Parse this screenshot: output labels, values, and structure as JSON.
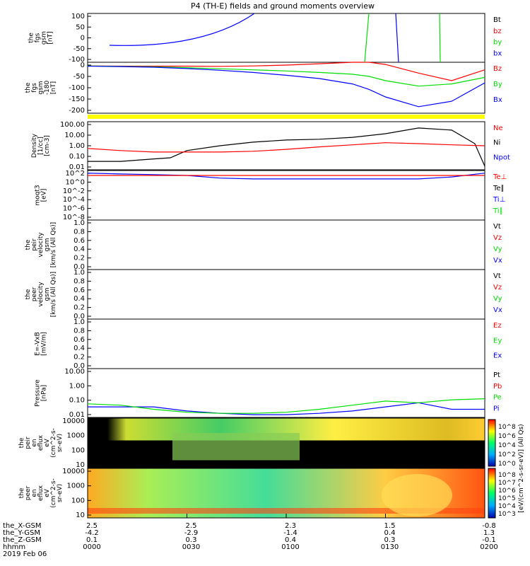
{
  "title": "P4 (TH-E) fields and ground moments overview",
  "colors": {
    "black": "#000000",
    "red": "#ff0000",
    "green": "#00dd00",
    "blue": "#0000ff",
    "yellow": "#ffff00"
  },
  "chart_data": {
    "type": "line",
    "panels": [
      {
        "key": "fgs_gsm",
        "ylabel_lines": [
          "the",
          "fgs",
          "gsm",
          "[nT]"
        ],
        "yticks": [
          "100",
          "50",
          "0",
          "-50",
          "-100"
        ],
        "ylim": [
          -100,
          100
        ],
        "legend": [
          {
            "text": "Bt",
            "color": "black"
          },
          {
            "text": "bz",
            "color": "red"
          },
          {
            "text": "by",
            "color": "green"
          },
          {
            "text": "bx",
            "color": "blue"
          }
        ]
      },
      {
        "key": "fgs_gsm_2",
        "ylabel_lines": [
          "the",
          "fgs",
          "gsm",
          "-180",
          "[nT]"
        ],
        "yticks": [
          "0",
          "-50",
          "-100",
          "-150",
          "-200"
        ],
        "ylim": [
          -220,
          15
        ],
        "legend": [
          {
            "text": "Bz",
            "color": "red"
          },
          {
            "text": "By",
            "color": "green"
          },
          {
            "text": "Bx",
            "color": "blue"
          }
        ],
        "series": [
          {
            "name": "Bz",
            "color": "red",
            "x": [
              0,
              10,
              20,
              30,
              40,
              50,
              60,
              70,
              80,
              85,
              90,
              100,
              110,
              120
            ],
            "values": [
              -2,
              -3,
              -3,
              -3,
              -4,
              -2,
              2,
              8,
              18,
              15,
              5,
              -35,
              -70,
              -20
            ]
          },
          {
            "name": "By",
            "color": "green",
            "x": [
              0,
              10,
              20,
              30,
              40,
              50,
              60,
              70,
              80,
              85,
              90,
              100,
              110,
              120
            ],
            "values": [
              -2,
              -4,
              -6,
              -10,
              -15,
              -20,
              -25,
              -32,
              -40,
              -50,
              -70,
              -95,
              -85,
              -55
            ]
          },
          {
            "name": "Bx",
            "color": "blue",
            "x": [
              0,
              10,
              20,
              30,
              40,
              50,
              60,
              70,
              80,
              85,
              90,
              100,
              110,
              120
            ],
            "values": [
              -3,
              -5,
              -8,
              -14,
              -22,
              -32,
              -45,
              -60,
              -85,
              -110,
              -145,
              -190,
              -165,
              -80
            ]
          }
        ]
      },
      {
        "key": "density",
        "ylabel_lines": [
          "Density",
          "[1/cc]",
          "[cm-3]"
        ],
        "yticks": [
          "100.00",
          "10.00",
          "1.00",
          "0.10",
          "0.01"
        ],
        "log": true,
        "ylim": [
          0.01,
          100
        ],
        "legend": [
          {
            "text": "Ne",
            "color": "red"
          },
          {
            "text": "Ni",
            "color": "black"
          },
          {
            "text": "Npot",
            "color": "blue"
          }
        ],
        "series": [
          {
            "name": "Ni",
            "color": "black",
            "x": [
              0,
              10,
              20,
              25,
              30,
              40,
              50,
              60,
              70,
              80,
              90,
              100,
              110,
              117,
              120
            ],
            "values": [
              0.05,
              0.05,
              0.08,
              0.1,
              0.4,
              1.0,
              2.0,
              3.0,
              3.5,
              5.0,
              10,
              30,
              20,
              1.5,
              0.02
            ]
          },
          {
            "name": "Ne",
            "color": "red",
            "x": [
              0,
              10,
              20,
              30,
              40,
              50,
              60,
              70,
              80,
              90,
              100,
              110,
              120
            ],
            "values": [
              0.6,
              0.4,
              0.3,
              0.3,
              0.3,
              0.35,
              0.5,
              0.8,
              1.2,
              1.8,
              1.5,
              1.2,
              1.0
            ]
          }
        ]
      },
      {
        "key": "moqt3",
        "ylabel_lines": [
          "moqt3",
          "[eV]"
        ],
        "yticks": [
          "10^2",
          "10^0",
          "10^-2",
          "10^-4",
          "10^-6",
          "10^-8"
        ],
        "log": true,
        "ylim": [
          1e-08,
          100
        ],
        "legend": [
          {
            "text": "Te⊥",
            "color": "red"
          },
          {
            "text": "Te∥",
            "color": "black"
          },
          {
            "text": "Ti⊥",
            "color": "blue"
          },
          {
            "text": "Ti∥",
            "color": "green"
          }
        ],
        "series": [
          {
            "name": "Ti",
            "color": "blue",
            "x": [
              0,
              10,
              20,
              30,
              40,
              50,
              60,
              70,
              80,
              90,
              100,
              110,
              120
            ],
            "values": [
              30,
              20,
              15,
              10,
              3,
              2,
              2,
              2,
              2,
              2,
              2,
              5,
              30
            ]
          },
          {
            "name": "Te",
            "color": "red",
            "x": [
              0,
              10,
              20,
              30,
              40,
              50,
              60,
              70,
              80,
              90,
              100,
              110,
              120
            ],
            "values": [
              10,
              10,
              10,
              10,
              10,
              10,
              10,
              10,
              10,
              10,
              10,
              10,
              10
            ]
          }
        ]
      },
      {
        "key": "peir_velocity",
        "ylabel_lines": [
          "the",
          "peir",
          "velocity",
          "gsm",
          "[km/s (All Qs)]"
        ],
        "yticks": [
          "1.0",
          "0.8",
          "0.6",
          "0.4",
          "0.2",
          "0.0"
        ],
        "ylim": [
          0,
          1
        ],
        "legend": [
          {
            "text": "Vt",
            "color": "black"
          },
          {
            "text": "Vz",
            "color": "red"
          },
          {
            "text": "Vy",
            "color": "green"
          },
          {
            "text": "Vx",
            "color": "blue"
          }
        ]
      },
      {
        "key": "peer_velocity",
        "ylabel_lines": [
          "the",
          "peer",
          "velocity",
          "gsm",
          "[km/s (All Qs)]"
        ],
        "yticks": [
          "1.0",
          "0.8",
          "0.6",
          "0.4",
          "0.2",
          "0.0"
        ],
        "ylim": [
          0,
          1
        ],
        "legend": [
          {
            "text": "Vt",
            "color": "black"
          },
          {
            "text": "Vz",
            "color": "red"
          },
          {
            "text": "Vy",
            "color": "green"
          },
          {
            "text": "Vx",
            "color": "blue"
          }
        ]
      },
      {
        "key": "efield",
        "ylabel_lines": [
          "E=-VxB",
          "[mV/m]"
        ],
        "yticks": [
          "1.0",
          "0.8",
          "0.6",
          "0.4",
          "0.2",
          "0.0"
        ],
        "ylim": [
          0,
          1
        ],
        "legend": [
          {
            "text": "Ez",
            "color": "red"
          },
          {
            "text": "Ey",
            "color": "green"
          },
          {
            "text": "Ex",
            "color": "blue"
          }
        ]
      },
      {
        "key": "pressure",
        "ylabel_lines": [
          "Pressure",
          "[nPa]"
        ],
        "yticks": [
          "10.00",
          "1.00",
          "0.10",
          "0.01"
        ],
        "log": true,
        "ylim": [
          0.005,
          20
        ],
        "legend": [
          {
            "text": "Pt",
            "color": "black"
          },
          {
            "text": "Pb",
            "color": "red"
          },
          {
            "text": "Pe",
            "color": "green"
          },
          {
            "text": "Pi",
            "color": "blue"
          }
        ],
        "series": [
          {
            "name": "Pi",
            "color": "blue",
            "x": [
              0,
              10,
              20,
              30,
              40,
              50,
              60,
              70,
              80,
              90,
              100,
              110,
              120
            ],
            "values": [
              0.03,
              0.03,
              0.03,
              0.015,
              0.01,
              0.008,
              0.008,
              0.01,
              0.015,
              0.03,
              0.06,
              0.02,
              0.02
            ]
          },
          {
            "name": "Pe",
            "color": "green",
            "x": [
              0,
              10,
              20,
              30,
              40,
              50,
              60,
              70,
              80,
              90,
              100,
              110,
              120
            ],
            "values": [
              0.05,
              0.04,
              0.02,
              0.012,
              0.01,
              0.01,
              0.012,
              0.02,
              0.04,
              0.08,
              0.06,
              0.1,
              0.12
            ]
          }
        ]
      },
      {
        "key": "peir_eflux",
        "ylabel_lines": [
          "the",
          "peir",
          "en",
          "eflux",
          "eV",
          "(cm^2-s-",
          "sr-eV)"
        ],
        "yticks": [
          "10000",
          "1000",
          "100",
          "10"
        ],
        "spectrogram": true
      },
      {
        "key": "peer_eflux",
        "ylabel_lines": [
          "the",
          "peer",
          "en",
          "eflux",
          "eV",
          "(cm^2-s-",
          "sr-eV)"
        ],
        "yticks": [
          "10000",
          "1000",
          "100",
          "10"
        ],
        "spectrogram": true
      }
    ],
    "colorbar": {
      "label": "[eV/(cm^2-s-sr-eV)] (All Qs)",
      "ticks_top": [
        "10^8",
        "10^6",
        "10^4",
        "10^2",
        "10^0"
      ],
      "ticks_bottom": [
        "10^8",
        "10^7",
        "10^6",
        "10^5",
        "10^4",
        "10^3"
      ]
    },
    "xaxis": {
      "row_labels": [
        "the_X-GSM",
        "the_Y-GSM",
        "the_Z-GSM",
        "hhmm",
        "2019 Feb 06"
      ],
      "ticks": [
        {
          "x": 0,
          "vals": [
            "2.5",
            "-4.2",
            "0.1",
            "0000"
          ]
        },
        {
          "x": 30,
          "vals": [
            "2.5",
            "-2.9",
            "0.3",
            "0030"
          ]
        },
        {
          "x": 60,
          "vals": [
            "2.3",
            "-1.4",
            "0.4",
            "0100"
          ]
        },
        {
          "x": 90,
          "vals": [
            "1.5",
            "0.4",
            "0.3",
            "0130"
          ]
        },
        {
          "x": 120,
          "vals": [
            "-0.8",
            "1.3",
            "-0.1",
            "0200"
          ]
        }
      ]
    }
  }
}
